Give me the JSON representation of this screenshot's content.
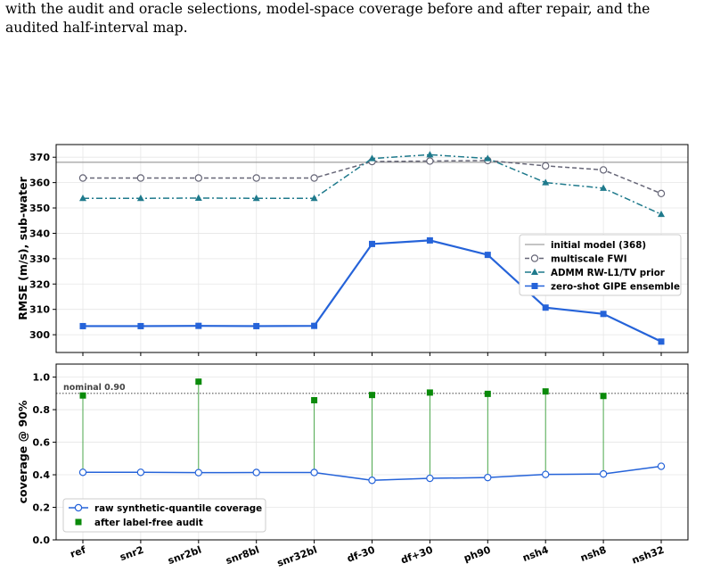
{
  "caption": {
    "line1": "with the audit and oracle selections, model-space coverage before and after repair, and the",
    "line2": "audited half-interval map."
  },
  "chart_data": [
    {
      "type": "line",
      "categories": [
        "ref",
        "snr2",
        "snr2bl",
        "snr8bl",
        "snr32bl",
        "df-30",
        "df+30",
        "ph90",
        "nsh4",
        "nsh8",
        "nsh32"
      ],
      "ylabel": "RMSE (m/s), sub-water",
      "xlabel": "",
      "ylim": [
        293,
        375
      ],
      "yticks": [
        300,
        310,
        320,
        330,
        340,
        350,
        360,
        370
      ],
      "grid": true,
      "legend_position": "center-right",
      "hline": {
        "name": "initial model (368)",
        "value": 368,
        "color": "#888888"
      },
      "series": [
        {
          "name": "multiscale FWI",
          "color": "#666677",
          "style": "dashed",
          "marker": "open-circle",
          "values": [
            361.8,
            361.8,
            361.8,
            361.8,
            361.8,
            368.3,
            368.5,
            368.7,
            366.6,
            365.0,
            355.7
          ]
        },
        {
          "name": "ADMM RW-L1/TV prior",
          "color": "#1f7a8c",
          "style": "dashdot",
          "marker": "triangle",
          "values": [
            353.8,
            353.8,
            353.9,
            353.8,
            353.8,
            369.5,
            371.0,
            369.5,
            360.0,
            357.8,
            347.5
          ]
        },
        {
          "name": "zero-shot GIPE ensemble",
          "color": "#2563d9",
          "style": "solid",
          "marker": "square",
          "values": [
            303.4,
            303.4,
            303.5,
            303.4,
            303.5,
            335.8,
            337.2,
            331.5,
            310.7,
            308.2,
            297.3
          ]
        }
      ]
    },
    {
      "type": "line",
      "categories": [
        "ref",
        "snr2",
        "snr2bl",
        "snr8bl",
        "snr32bl",
        "df-30",
        "df+30",
        "ph90",
        "nsh4",
        "nsh8",
        "nsh32"
      ],
      "ylabel": "coverage @ 90%",
      "xlabel": "",
      "ylim": [
        0.0,
        1.08
      ],
      "yticks": [
        0.0,
        0.2,
        0.4,
        0.6,
        0.8,
        1.0
      ],
      "grid": true,
      "legend_position": "lower-left",
      "hline": {
        "label": "nominal 0.90",
        "value": 0.9
      },
      "series": [
        {
          "name": "raw synthetic-quantile coverage",
          "color": "#2563d9",
          "marker": "open-circle",
          "values": [
            0.415,
            0.415,
            0.413,
            0.414,
            0.414,
            0.366,
            0.378,
            0.383,
            0.402,
            0.405,
            0.452
          ]
        },
        {
          "name": "after label-free audit",
          "color": "#0a8a0a",
          "marker": "square",
          "x": [
            "ref",
            "snr2bl",
            "snr32bl",
            "df-30",
            "df+30",
            "ph90",
            "nsh4",
            "nsh8"
          ],
          "values": [
            0.887,
            0.972,
            0.858,
            0.89,
            0.905,
            0.897,
            0.912,
            0.884
          ]
        }
      ]
    }
  ]
}
